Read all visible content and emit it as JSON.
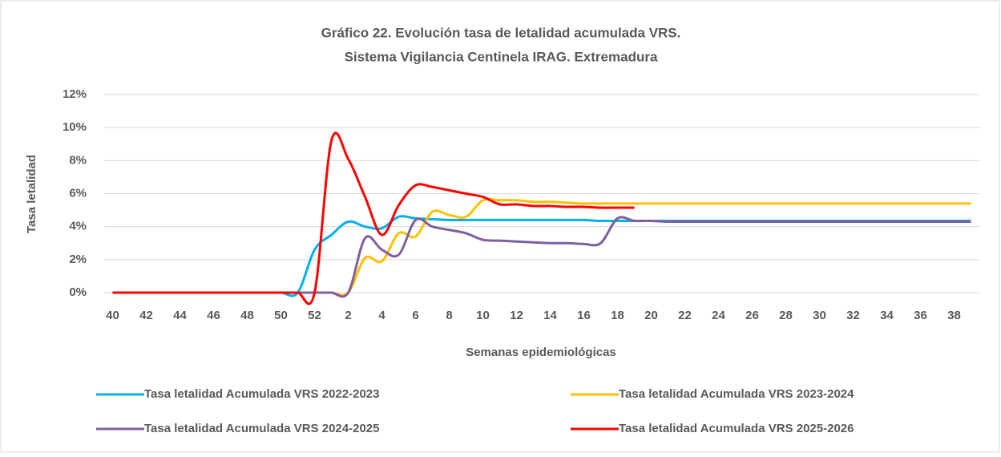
{
  "chart_data": {
    "type": "line",
    "title": "Gráfico 22. Evolución tasa de letalidad acumulada VRS.",
    "subtitle": "Sistema Vigilancia Centinela IRAG. Extremadura",
    "y_label": "Tasa letalidad",
    "x_label": "Semanas epidemiológicas",
    "categories": [
      40,
      null,
      42,
      null,
      44,
      null,
      46,
      null,
      48,
      null,
      50,
      null,
      52,
      null,
      2,
      null,
      4,
      null,
      6,
      null,
      8,
      null,
      10,
      null,
      12,
      null,
      14,
      null,
      16,
      null,
      18,
      null,
      20,
      null,
      22,
      null,
      24,
      null,
      26,
      null,
      28,
      null,
      30,
      null,
      32,
      null,
      34,
      null,
      36,
      null,
      38,
      null
    ],
    "ylim": [
      0,
      12
    ],
    "yticks": [
      {
        "value": 0,
        "label": "0%"
      },
      {
        "value": 2,
        "label": "2%"
      },
      {
        "value": 4,
        "label": "4%"
      },
      {
        "value": 6,
        "label": "6%"
      },
      {
        "value": 8,
        "label": "8%"
      },
      {
        "value": 10,
        "label": "10%"
      },
      {
        "value": 12,
        "label": "12%"
      }
    ],
    "grid": true,
    "series": [
      {
        "name": "Tasa letalidad Acumulada VRS 2022-2023",
        "color": "#00b0f0",
        "values": [
          0,
          0,
          0,
          0,
          0,
          0,
          0,
          0,
          0,
          0,
          0,
          0,
          2.6,
          3.5,
          4.3,
          4.0,
          3.9,
          4.6,
          4.5,
          4.45,
          4.4,
          4.4,
          4.4,
          4.4,
          4.4,
          4.4,
          4.4,
          4.4,
          4.4,
          4.35,
          4.35,
          4.35,
          4.35,
          4.35,
          4.35,
          4.35,
          4.35,
          4.35,
          4.35,
          4.35,
          4.35,
          4.35,
          4.35,
          4.35,
          4.35,
          4.35,
          4.35,
          4.35,
          4.35,
          4.35,
          4.35,
          4.35
        ]
      },
      {
        "name": "Tasa letalidad Acumulada VRS 2023-2024",
        "color": "#ffc000",
        "values": [
          0,
          0,
          0,
          0,
          0,
          0,
          0,
          0,
          0,
          0,
          0,
          0,
          0,
          0,
          0,
          2.1,
          1.9,
          3.6,
          3.4,
          4.9,
          4.7,
          4.6,
          5.6,
          5.6,
          5.6,
          5.5,
          5.5,
          5.45,
          5.4,
          5.4,
          5.4,
          5.4,
          5.4,
          5.4,
          5.4,
          5.4,
          5.4,
          5.4,
          5.4,
          5.4,
          5.4,
          5.4,
          5.4,
          5.4,
          5.4,
          5.4,
          5.4,
          5.4,
          5.4,
          5.4,
          5.4,
          5.4
        ]
      },
      {
        "name": "Tasa letalidad Acumulada VRS 2024-2025",
        "color": "#7f5f9f",
        "values": [
          0,
          0,
          0,
          0,
          0,
          0,
          0,
          0,
          0,
          0,
          0,
          0,
          0,
          0,
          0,
          3.3,
          2.6,
          2.3,
          4.4,
          4.0,
          3.8,
          3.6,
          3.2,
          3.15,
          3.1,
          3.05,
          3.0,
          3.0,
          2.95,
          3.0,
          4.5,
          4.35,
          4.35,
          4.3,
          4.3,
          4.3,
          4.3,
          4.3,
          4.3,
          4.3,
          4.3,
          4.3,
          4.3,
          4.3,
          4.3,
          4.3,
          4.3,
          4.3,
          4.3,
          4.3,
          4.3,
          4.3
        ]
      },
      {
        "name": "Tasa letalidad Acumulada VRS 2025-2026",
        "color": "#ff0000",
        "values": [
          0,
          0,
          0,
          0,
          0,
          0,
          0,
          0,
          0,
          0,
          0,
          0,
          0,
          9.2,
          8.1,
          5.8,
          3.5,
          5.3,
          6.5,
          6.4,
          6.2,
          6.0,
          5.8,
          5.35,
          5.35,
          5.25,
          5.25,
          5.2,
          5.2,
          5.15,
          5.15,
          5.15,
          null,
          null,
          null,
          null,
          null,
          null,
          null,
          null,
          null,
          null,
          null,
          null,
          null,
          null,
          null,
          null,
          null,
          null,
          null,
          null
        ]
      }
    ]
  }
}
